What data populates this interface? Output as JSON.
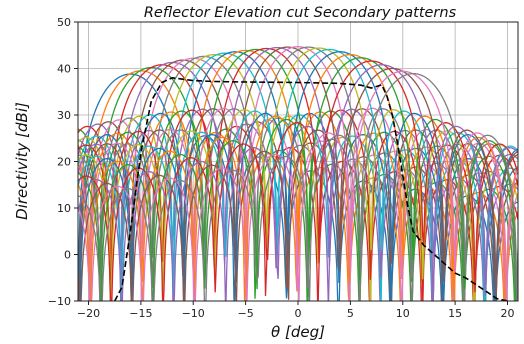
{
  "chart_data": {
    "type": "line",
    "title": "Reflector Elevation cut Secondary patterns",
    "xlabel": "θ [deg]",
    "ylabel": "Directivity [dBi]",
    "xlim": [
      -21,
      21
    ],
    "ylim": [
      -10,
      50
    ],
    "x_ticks": [
      -20,
      -15,
      -10,
      -5,
      0,
      5,
      10,
      15,
      20
    ],
    "y_ticks": [
      -10,
      0,
      10,
      20,
      30,
      40,
      50
    ],
    "grid": true,
    "beam_count": 28,
    "beam_centers": [
      -16.0,
      -15.0,
      -14.0,
      -13.0,
      -12.0,
      -11.0,
      -10.0,
      -9.0,
      -8.0,
      -7.0,
      -6.0,
      -5.0,
      -4.0,
      -3.0,
      -2.0,
      -1.0,
      0.0,
      1.0,
      2.0,
      3.0,
      4.0,
      5.0,
      6.0,
      7.0,
      8.0,
      9.0,
      10.0,
      11.0
    ],
    "beam_peaks_dbi": [
      38.8,
      39.5,
      40.2,
      40.8,
      41.3,
      41.8,
      42.2,
      42.6,
      43.0,
      43.3,
      43.6,
      43.9,
      44.1,
      44.3,
      44.5,
      44.6,
      44.7,
      44.6,
      44.4,
      44.1,
      43.6,
      43.0,
      42.3,
      41.6,
      40.8,
      40.0,
      39.4,
      38.9
    ],
    "series_colors": [
      "#1f77b4",
      "#ff7f0e",
      "#2ca02c",
      "#d62728",
      "#9467bd",
      "#8c564b",
      "#e377c2",
      "#7f7f7f",
      "#bcbd22",
      "#17becf"
    ],
    "envelope": {
      "style": "dashed",
      "color": "#000000",
      "x": [
        -17.5,
        -16.8,
        -16.0,
        -15.0,
        -14.0,
        -13.0,
        -12.0,
        -11.0,
        -10.0,
        -8.0,
        -5.0,
        0.0,
        4.0,
        6.0,
        7.0,
        8.0,
        8.5,
        9.0,
        9.5,
        10.0,
        10.5,
        11.0,
        12.0,
        13.0,
        14.0,
        15.0,
        16.0,
        17.0,
        18.0,
        19.0,
        20.0
      ],
      "y": [
        -10.0,
        -7.0,
        5.0,
        22.0,
        33.0,
        37.0,
        38.0,
        37.7,
        37.4,
        37.2,
        37.1,
        37.0,
        36.8,
        36.4,
        35.8,
        36.5,
        34.0,
        30.0,
        24.0,
        17.0,
        10.0,
        5.0,
        2.0,
        0.0,
        -2.0,
        -4.0,
        -5.0,
        -6.5,
        -8.0,
        -9.5,
        -10.0
      ]
    }
  }
}
